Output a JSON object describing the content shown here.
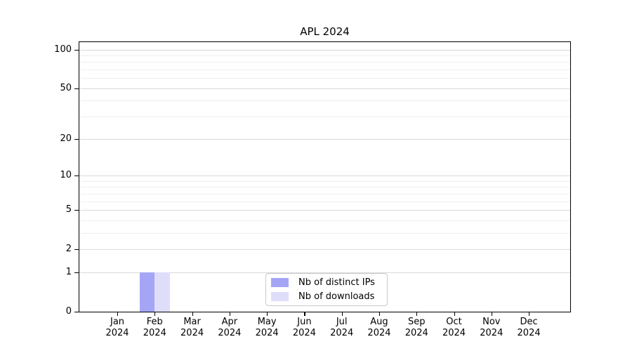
{
  "chart_data": {
    "type": "bar",
    "title": "APL 2024",
    "categories": [
      "Jan",
      "Feb",
      "Mar",
      "Apr",
      "May",
      "Jun",
      "Jul",
      "Aug",
      "Sep",
      "Oct",
      "Nov",
      "Dec"
    ],
    "category_year_line": "2024",
    "series": [
      {
        "name": "Nb of distinct IPs",
        "color": "#a5a5f6",
        "values": [
          0,
          1,
          0,
          0,
          0,
          0,
          0,
          0,
          0,
          0,
          0,
          0
        ]
      },
      {
        "name": "Nb of downloads",
        "color": "#dedefb",
        "values": [
          0,
          1,
          0,
          0,
          0,
          0,
          0,
          0,
          0,
          0,
          0,
          0
        ]
      }
    ],
    "y_scale": "log1p",
    "ylim": [
      0,
      114
    ],
    "y_ticks": [
      0,
      1,
      2,
      5,
      10,
      20,
      50,
      100
    ],
    "y_minor_gridlines": [
      3,
      4,
      6,
      7,
      8,
      9,
      30,
      40,
      60,
      70,
      80,
      90
    ],
    "grid": "horizontal",
    "legend_position": "bottom-center-inside"
  }
}
